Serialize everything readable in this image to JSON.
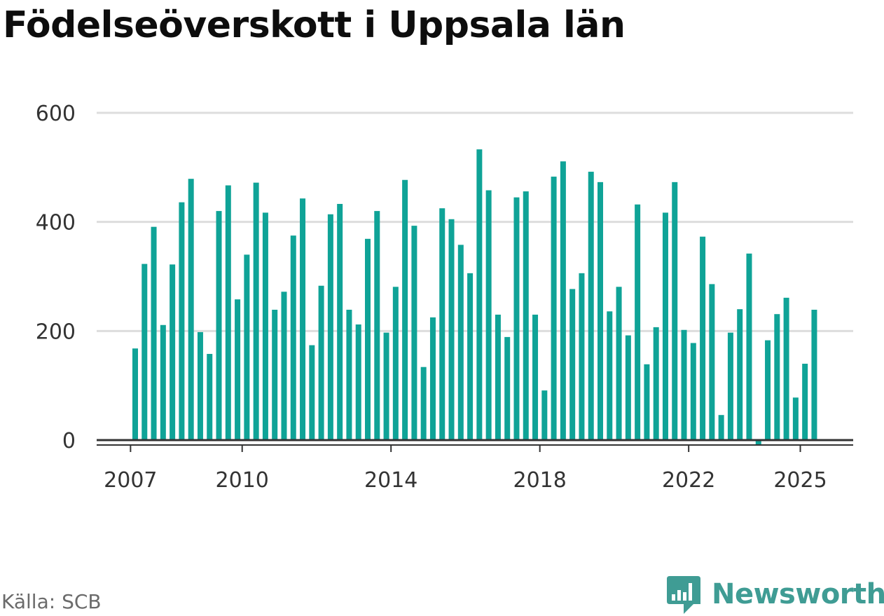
{
  "header": {
    "title": "Födelseöverskott i Uppsala län"
  },
  "footer": {
    "source": "Källa: SCB",
    "brand": "Newsworthy"
  },
  "colors": {
    "bar": "#0fa397",
    "grid": "#dddddd",
    "axis": "#333333",
    "brand": "#3f9c94"
  },
  "chart_data": {
    "type": "bar",
    "title": "Födelseöverskott i Uppsala län",
    "xlabel": "",
    "ylabel": "",
    "ylim": [
      0,
      600
    ],
    "yticks": [
      0,
      200,
      400,
      600
    ],
    "xticks": [
      "2007",
      "2010",
      "2014",
      "2018",
      "2022",
      "2025"
    ],
    "grid": true,
    "frequency": "quarterly",
    "start": "2007 Q1",
    "values": [
      168,
      323,
      391,
      211,
      322,
      436,
      479,
      198,
      158,
      420,
      467,
      258,
      340,
      472,
      417,
      239,
      272,
      375,
      443,
      174,
      283,
      414,
      433,
      239,
      212,
      369,
      420,
      197,
      281,
      477,
      393,
      134,
      225,
      425,
      405,
      358,
      306,
      533,
      458,
      230,
      189,
      445,
      456,
      230,
      91,
      483,
      511,
      277,
      306,
      492,
      473,
      236,
      281,
      192,
      432,
      139,
      207,
      417,
      473,
      202,
      178,
      373,
      286,
      46,
      197,
      240,
      342,
      -10,
      183,
      231,
      261,
      78,
      140,
      239
    ]
  }
}
